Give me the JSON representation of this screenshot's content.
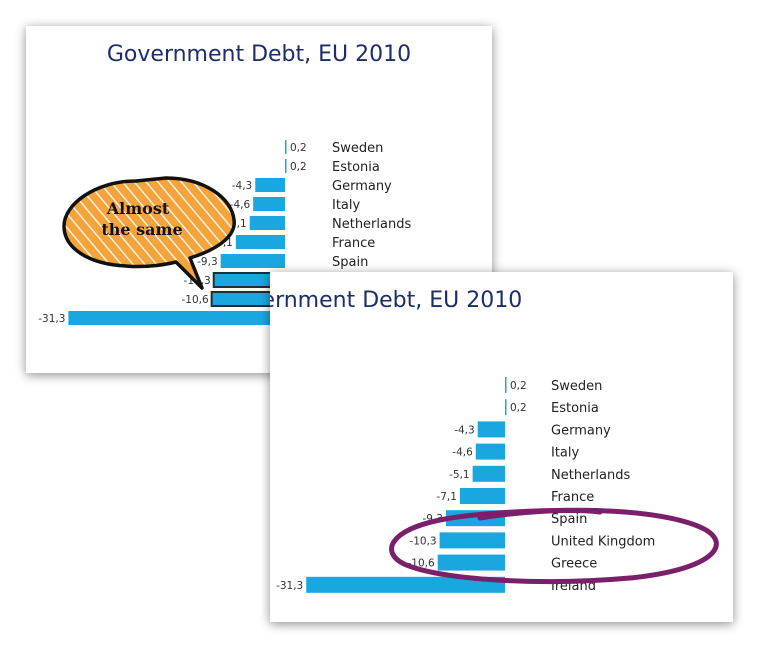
{
  "slides": [
    {
      "title": "Government Debt, EU 2010",
      "callout": {
        "line1": "Almost",
        "line2": "the same"
      }
    },
    {
      "title": "Government Debt, EU 2010"
    }
  ],
  "chart_data": {
    "type": "bar",
    "orientation": "horizontal",
    "title": "Government Debt, EU 2010",
    "categories": [
      "Sweden",
      "Estonia",
      "Germany",
      "Italy",
      "Netherlands",
      "France",
      "Spain",
      "United Kingdom",
      "Greece",
      "Ireland"
    ],
    "values": [
      0.2,
      0.2,
      -4.3,
      -4.6,
      -5.1,
      -7.1,
      -9.3,
      -10.3,
      -10.6,
      -31.3
    ],
    "value_labels": [
      "0,2",
      "0,2",
      "-4,3",
      "-4,6",
      "-5,1",
      "-7,1",
      "-9,3",
      "-10,3",
      "-10,6",
      "-31,3"
    ],
    "highlighted": [
      "United Kingdom",
      "Greece"
    ],
    "bar_color": "#1aa7e0",
    "highlight_stroke": "#1b2e3a",
    "callout_color": "#f4a43a",
    "ellipse_color": "#7b1f6a",
    "title_color": "#1b2e6b"
  }
}
